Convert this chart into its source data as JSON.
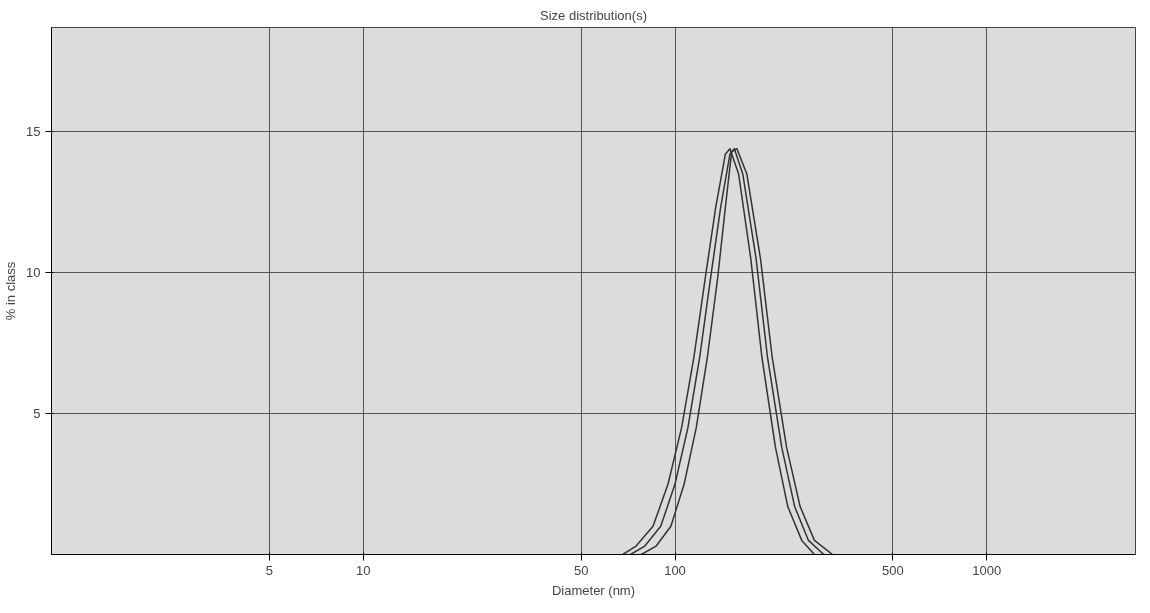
{
  "chart_data": {
    "type": "line",
    "title": "Size distribution(s)",
    "xlabel": "Diameter (nm)",
    "ylabel": "% in class",
    "log": "x",
    "xlim": [
      1,
      3000
    ],
    "xticks": [
      5,
      10,
      50,
      100,
      500,
      1000
    ],
    "ylim": [
      0,
      18.7
    ],
    "yticks": [
      5,
      10,
      15
    ],
    "grid": true,
    "marker": "none",
    "line_style": "solid",
    "series": [
      {
        "color": "#333333",
        "x": [
          68,
          75,
          85,
          95,
          105,
          115,
          125,
          135,
          145,
          150,
          160,
          175,
          190,
          210,
          230,
          255,
          280
        ],
        "values": [
          0,
          0.3,
          1,
          2.5,
          4.5,
          7,
          9.8,
          12.3,
          14.2,
          14.4,
          13.5,
          10.5,
          7,
          3.8,
          1.7,
          0.5,
          0
        ]
      },
      {
        "color": "#333333",
        "x": [
          72,
          80,
          90,
          100,
          110,
          120,
          130,
          140,
          150,
          155,
          165,
          182,
          198,
          220,
          242,
          268,
          300
        ],
        "values": [
          0,
          0.3,
          1,
          2.5,
          4.5,
          7,
          9.8,
          12.3,
          14.2,
          14.4,
          13.5,
          10.5,
          7,
          3.8,
          1.7,
          0.5,
          0
        ]
      },
      {
        "color": "#333333",
        "x": [
          78,
          87,
          97,
          107,
          117,
          127,
          137,
          145,
          152,
          158,
          170,
          188,
          205,
          228,
          252,
          280,
          320
        ],
        "values": [
          0,
          0.3,
          1,
          2.5,
          4.5,
          7,
          9.8,
          12.3,
          14.3,
          14.4,
          13.5,
          10.5,
          7,
          3.8,
          1.7,
          0.5,
          0
        ]
      }
    ]
  }
}
